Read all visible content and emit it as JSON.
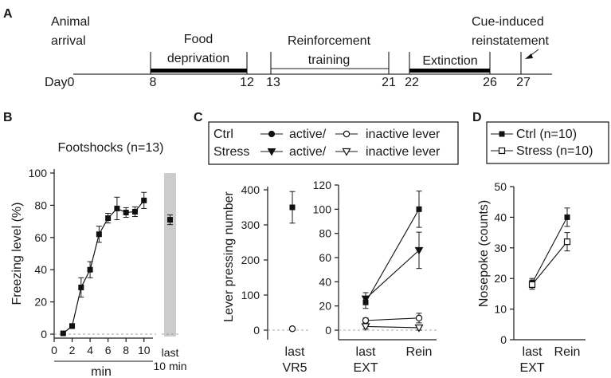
{
  "panel_a": {
    "letter": "A",
    "start_label": "Day0",
    "events": [
      {
        "label_lines": [
          "Animal",
          "arrival"
        ],
        "start_day": "0",
        "end_day": "",
        "bar": false
      },
      {
        "label_lines": [
          "Food",
          "deprivation"
        ],
        "start_day": "8",
        "end_day": "12",
        "bar": true
      },
      {
        "label_lines": [
          "Reinforcement",
          "training"
        ],
        "start_day": "13",
        "end_day": "21",
        "bar": false
      },
      {
        "label_lines": [
          "Extinction"
        ],
        "start_day": "22",
        "end_day": "26",
        "bar": true
      },
      {
        "label_lines": [
          "Cue-induced",
          "reinstatement"
        ],
        "start_day": "27",
        "end_day": "",
        "bar": false
      }
    ]
  },
  "chart_data": [
    {
      "panel": "B",
      "type": "line",
      "title": "Footshocks (n=13)",
      "ylabel": "Freezing level (%)",
      "xlabel": "min",
      "ylim": [
        0,
        100
      ],
      "yticks": [
        0,
        20,
        40,
        60,
        80,
        100
      ],
      "xticks": [
        0,
        2,
        4,
        6,
        8,
        10
      ],
      "xlim": [
        0,
        11
      ],
      "grid": false,
      "series": [
        {
          "x": [
            1,
            2,
            3,
            4,
            5,
            6,
            7,
            8,
            9,
            10
          ],
          "y": [
            0.5,
            5,
            29,
            40,
            62,
            72,
            78,
            75.5,
            76,
            83
          ],
          "err": [
            1,
            1.5,
            6,
            5,
            5,
            3,
            7,
            3,
            3,
            5
          ]
        }
      ],
      "inset": {
        "label_lines": [
          "last",
          "10 min"
        ],
        "value": 71,
        "err": 3
      }
    },
    {
      "panel": "C",
      "type": "scatter",
      "ylabel": "Lever pressing number",
      "legend": [
        {
          "group": "Ctrl",
          "parts": [
            "active/",
            "inactive lever"
          ]
        },
        {
          "group": "Stress",
          "parts": [
            "active/",
            "inactive lever"
          ]
        }
      ],
      "left": {
        "ylim": [
          0,
          400
        ],
        "yticks": [
          0,
          100,
          200,
          300,
          400
        ],
        "categories": [
          [
            "last",
            "VR5"
          ]
        ],
        "active": [
          350
        ],
        "active_err": [
          45
        ],
        "inactive": [
          4
        ],
        "inactive_err": [
          3
        ]
      },
      "right": {
        "ylim": [
          0,
          120
        ],
        "yticks": [
          0,
          20,
          40,
          60,
          80,
          100,
          120
        ],
        "categories": [
          [
            "last",
            "EXT"
          ],
          [
            "Rein",
            ""
          ]
        ],
        "series": [
          {
            "name": "Ctrl active",
            "values": [
              23,
              100
            ],
            "err": [
              5,
              15
            ]
          },
          {
            "name": "Stress active",
            "values": [
              26,
              66
            ],
            "err": [
              5,
              15
            ]
          },
          {
            "name": "Ctrl inactive",
            "values": [
              8,
              10
            ],
            "err": [
              2,
              4
            ]
          },
          {
            "name": "Stress inactive",
            "values": [
              3,
              2
            ],
            "err": [
              2,
              2
            ]
          }
        ]
      }
    },
    {
      "panel": "D",
      "type": "line",
      "ylabel": "Nosepoke (counts)",
      "ylim": [
        0,
        50
      ],
      "yticks": [
        0,
        10,
        20,
        30,
        40,
        50
      ],
      "categories": [
        [
          "last",
          "EXT"
        ],
        [
          "Rein",
          ""
        ]
      ],
      "series": [
        {
          "name": "Ctrl (n=10)",
          "values": [
            18.5,
            40
          ],
          "err": [
            1.5,
            3
          ]
        },
        {
          "name": "Stress (n=10)",
          "values": [
            18,
            32
          ],
          "err": [
            1.5,
            3
          ]
        }
      ]
    }
  ],
  "letters": {
    "b": "B",
    "c": "C",
    "d": "D"
  }
}
